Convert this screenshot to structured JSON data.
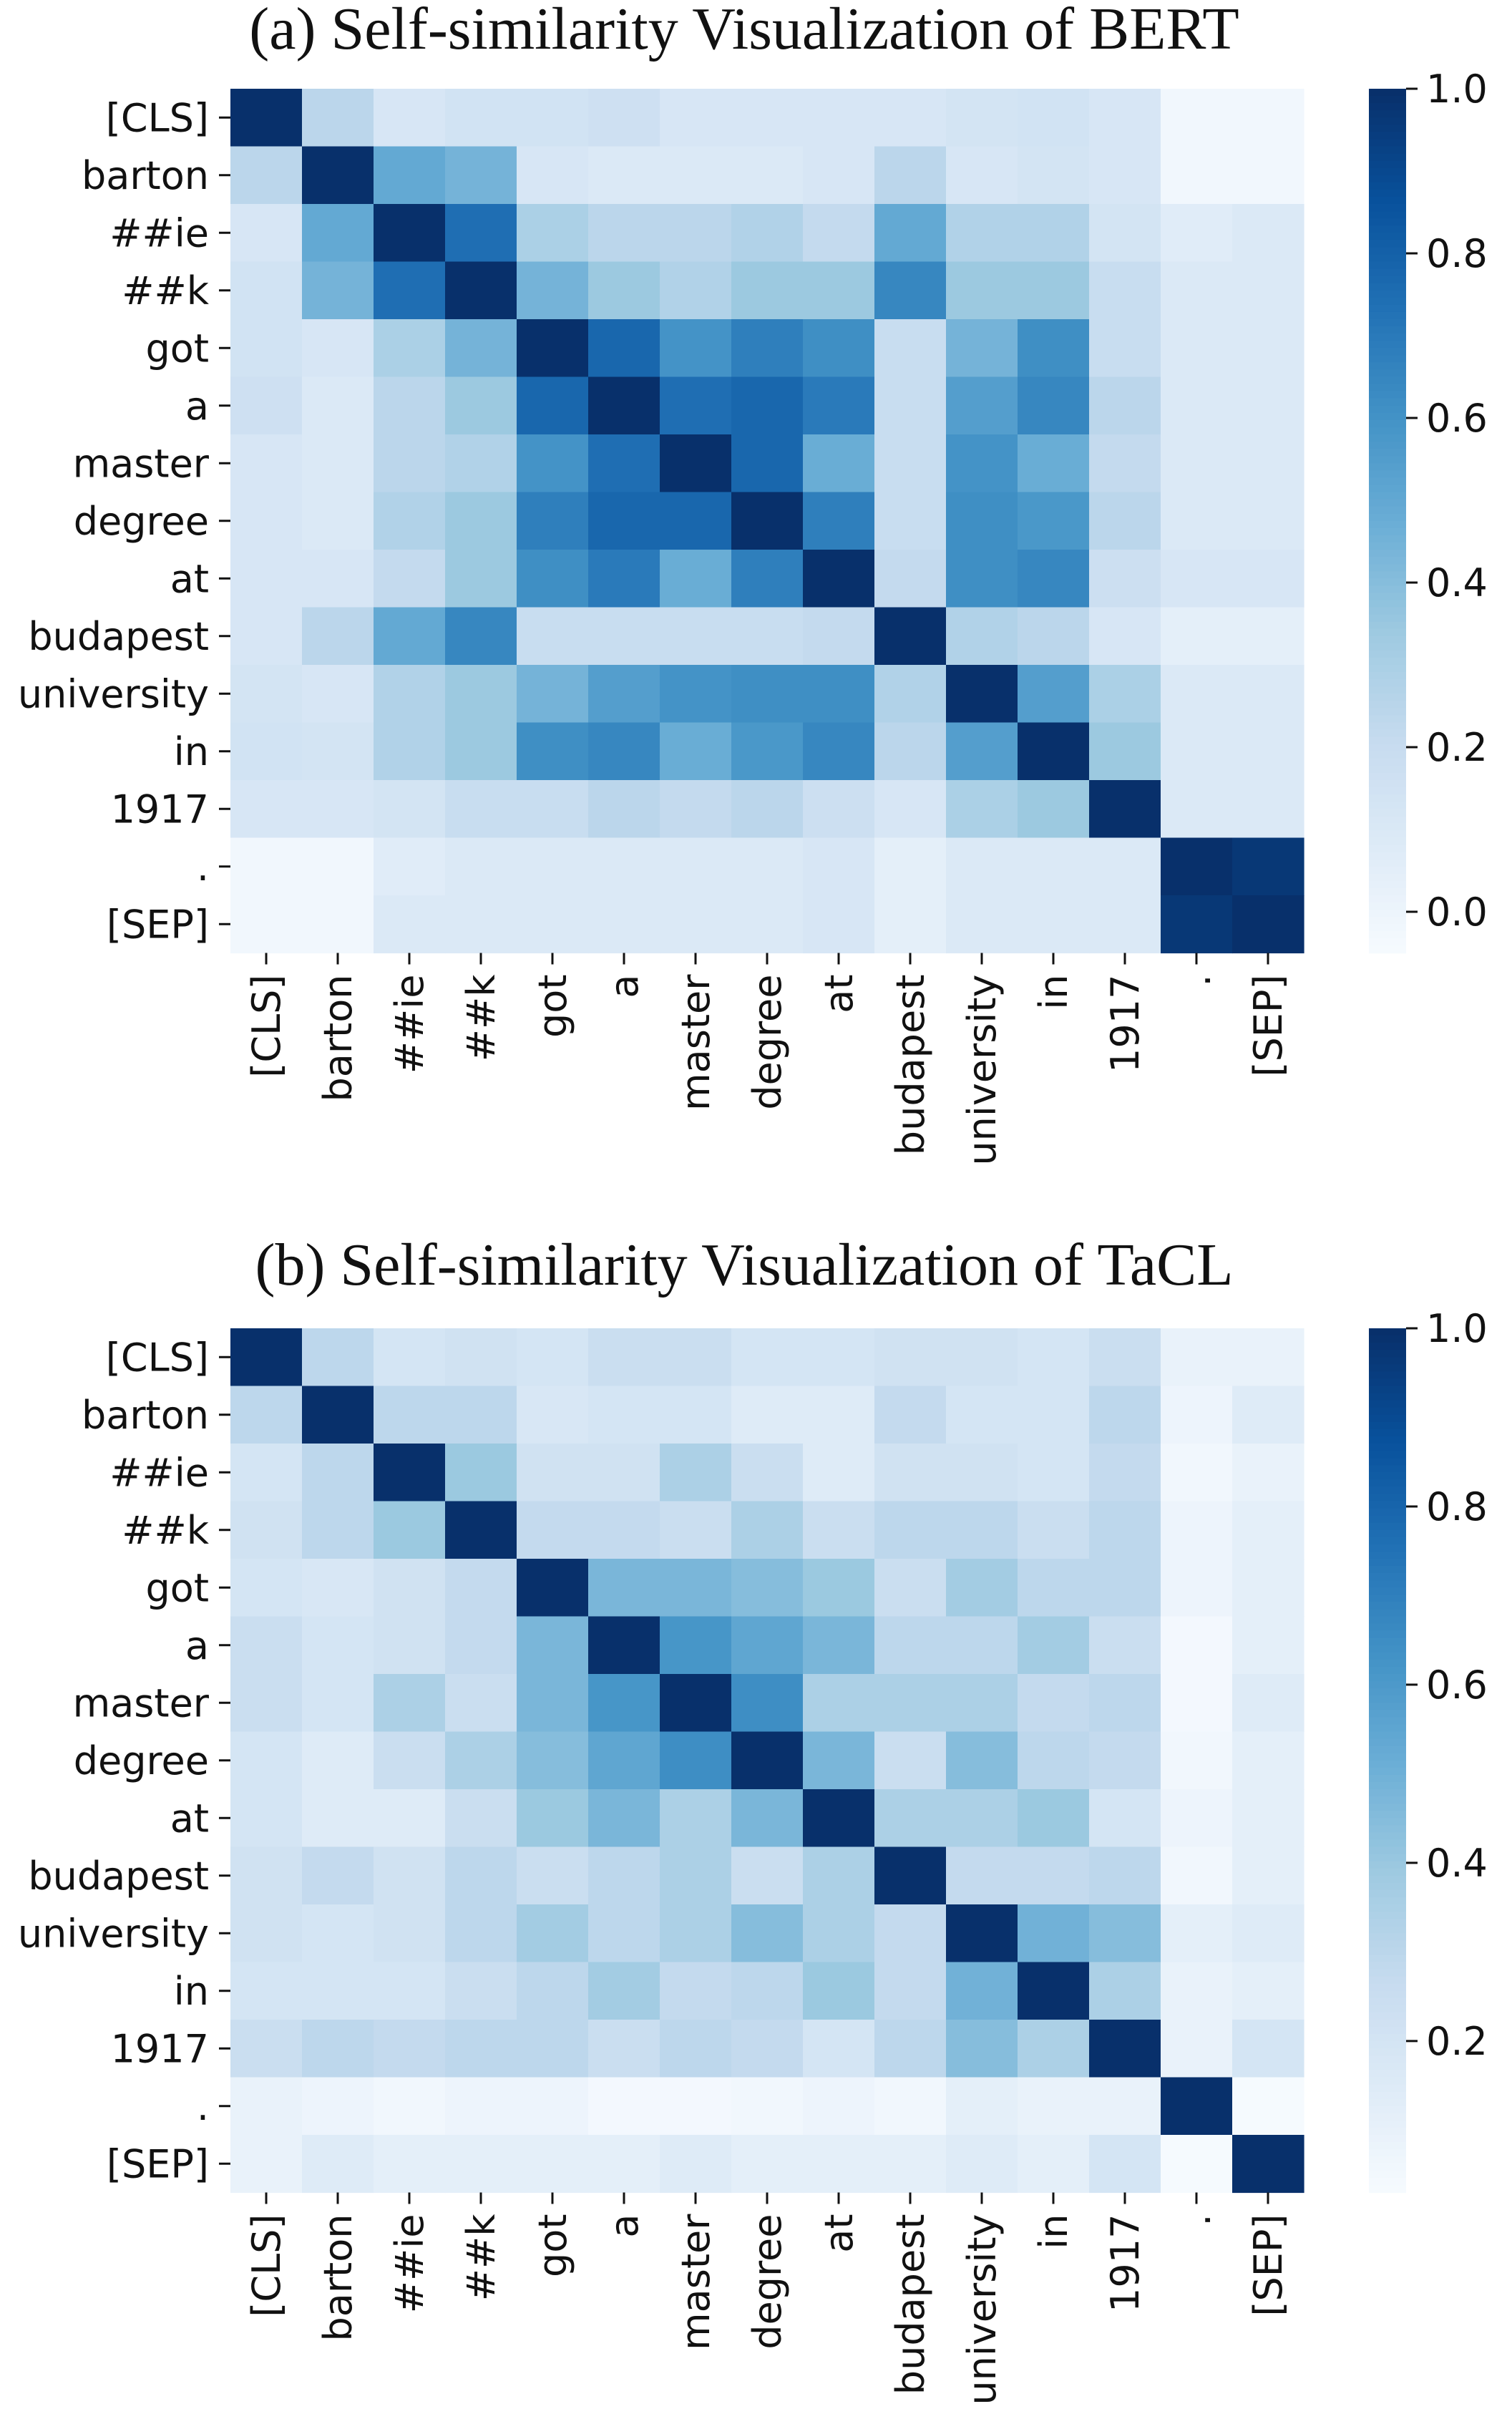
{
  "chart_data": [
    {
      "type": "heatmap",
      "title": "(a) Self-similarity Visualization of BERT",
      "x_labels": [
        "[CLS]",
        "barton",
        "##ie",
        "##k",
        "got",
        "a",
        "master",
        "degree",
        "at",
        "budapest",
        "university",
        "in",
        "1917",
        ".",
        "[SEP]"
      ],
      "y_labels": [
        "[CLS]",
        "barton",
        "##ie",
        "##k",
        "got",
        "a",
        "master",
        "degree",
        "at",
        "budapest",
        "university",
        "in",
        "1917",
        ".",
        "[SEP]"
      ],
      "values": [
        [
          1.0,
          0.25,
          0.12,
          0.15,
          0.15,
          0.17,
          0.12,
          0.12,
          0.12,
          0.12,
          0.14,
          0.15,
          0.12,
          -0.02,
          -0.02
        ],
        [
          0.25,
          1.0,
          0.5,
          0.45,
          0.12,
          0.1,
          0.1,
          0.1,
          0.12,
          0.25,
          0.12,
          0.14,
          0.12,
          -0.02,
          -0.02
        ],
        [
          0.12,
          0.5,
          1.0,
          0.75,
          0.3,
          0.25,
          0.25,
          0.28,
          0.22,
          0.5,
          0.28,
          0.28,
          0.14,
          0.07,
          0.1
        ],
        [
          0.15,
          0.45,
          0.75,
          1.0,
          0.45,
          0.35,
          0.28,
          0.35,
          0.35,
          0.65,
          0.35,
          0.35,
          0.2,
          0.1,
          0.1
        ],
        [
          0.15,
          0.12,
          0.3,
          0.45,
          1.0,
          0.78,
          0.6,
          0.68,
          0.62,
          0.2,
          0.45,
          0.62,
          0.2,
          0.1,
          0.1
        ],
        [
          0.17,
          0.1,
          0.25,
          0.35,
          0.78,
          1.0,
          0.75,
          0.78,
          0.7,
          0.2,
          0.55,
          0.65,
          0.25,
          0.1,
          0.1
        ],
        [
          0.12,
          0.1,
          0.25,
          0.28,
          0.6,
          0.75,
          1.0,
          0.78,
          0.48,
          0.2,
          0.6,
          0.48,
          0.22,
          0.1,
          0.1
        ],
        [
          0.12,
          0.1,
          0.28,
          0.35,
          0.68,
          0.78,
          0.78,
          1.0,
          0.68,
          0.2,
          0.62,
          0.58,
          0.25,
          0.1,
          0.1
        ],
        [
          0.12,
          0.12,
          0.22,
          0.35,
          0.62,
          0.7,
          0.48,
          0.68,
          1.0,
          0.22,
          0.62,
          0.65,
          0.18,
          0.12,
          0.12
        ],
        [
          0.12,
          0.25,
          0.5,
          0.65,
          0.2,
          0.2,
          0.2,
          0.2,
          0.22,
          1.0,
          0.28,
          0.25,
          0.12,
          0.05,
          0.05
        ],
        [
          0.14,
          0.12,
          0.28,
          0.35,
          0.45,
          0.55,
          0.6,
          0.62,
          0.62,
          0.28,
          1.0,
          0.55,
          0.3,
          0.1,
          0.1
        ],
        [
          0.15,
          0.14,
          0.28,
          0.35,
          0.62,
          0.65,
          0.48,
          0.58,
          0.65,
          0.25,
          0.55,
          1.0,
          0.35,
          0.1,
          0.1
        ],
        [
          0.12,
          0.12,
          0.14,
          0.2,
          0.2,
          0.25,
          0.22,
          0.25,
          0.18,
          0.12,
          0.3,
          0.35,
          1.0,
          0.1,
          0.1
        ],
        [
          -0.02,
          -0.02,
          0.07,
          0.1,
          0.1,
          0.1,
          0.1,
          0.1,
          0.12,
          0.05,
          0.1,
          0.1,
          0.1,
          1.0,
          0.97
        ],
        [
          -0.02,
          -0.02,
          0.1,
          0.1,
          0.1,
          0.1,
          0.1,
          0.1,
          0.12,
          0.05,
          0.1,
          0.1,
          0.1,
          0.97,
          1.0
        ]
      ],
      "colormap": "Blues",
      "vmin": -0.05,
      "vmax": 1.0,
      "colorbar_ticks": [
        "0.0",
        "0.2",
        "0.4",
        "0.6",
        "0.8",
        "1.0"
      ]
    },
    {
      "type": "heatmap",
      "title": "(b) Self-similarity Visualization of TaCL",
      "x_labels": [
        "[CLS]",
        "barton",
        "##ie",
        "##k",
        "got",
        "a",
        "master",
        "degree",
        "at",
        "budapest",
        "university",
        "in",
        "1917",
        ".",
        "[SEP]"
      ],
      "y_labels": [
        "[CLS]",
        "barton",
        "##ie",
        "##k",
        "got",
        "a",
        "master",
        "degree",
        "at",
        "budapest",
        "university",
        "in",
        "1917",
        ".",
        "[SEP]"
      ],
      "values": [
        [
          1.0,
          0.3,
          0.2,
          0.22,
          0.2,
          0.25,
          0.25,
          0.2,
          0.2,
          0.22,
          0.22,
          0.2,
          0.25,
          0.1,
          0.1
        ],
        [
          0.3,
          1.0,
          0.3,
          0.3,
          0.18,
          0.2,
          0.2,
          0.15,
          0.15,
          0.28,
          0.2,
          0.2,
          0.3,
          0.08,
          0.15
        ],
        [
          0.2,
          0.3,
          1.0,
          0.4,
          0.22,
          0.22,
          0.35,
          0.25,
          0.15,
          0.22,
          0.22,
          0.2,
          0.28,
          0.06,
          0.1
        ],
        [
          0.22,
          0.3,
          0.4,
          1.0,
          0.28,
          0.28,
          0.25,
          0.35,
          0.25,
          0.3,
          0.3,
          0.25,
          0.3,
          0.08,
          0.12
        ],
        [
          0.2,
          0.18,
          0.22,
          0.28,
          1.0,
          0.48,
          0.48,
          0.45,
          0.4,
          0.25,
          0.38,
          0.3,
          0.3,
          0.08,
          0.12
        ],
        [
          0.25,
          0.2,
          0.22,
          0.28,
          0.48,
          1.0,
          0.62,
          0.55,
          0.48,
          0.3,
          0.3,
          0.38,
          0.25,
          0.05,
          0.12
        ],
        [
          0.25,
          0.2,
          0.35,
          0.25,
          0.48,
          0.62,
          1.0,
          0.65,
          0.35,
          0.35,
          0.35,
          0.28,
          0.3,
          0.05,
          0.15
        ],
        [
          0.2,
          0.15,
          0.25,
          0.35,
          0.45,
          0.55,
          0.65,
          1.0,
          0.48,
          0.25,
          0.45,
          0.3,
          0.28,
          0.06,
          0.12
        ],
        [
          0.2,
          0.15,
          0.15,
          0.25,
          0.4,
          0.48,
          0.35,
          0.48,
          1.0,
          0.35,
          0.35,
          0.4,
          0.2,
          0.08,
          0.12
        ],
        [
          0.22,
          0.28,
          0.22,
          0.3,
          0.25,
          0.3,
          0.35,
          0.25,
          0.35,
          1.0,
          0.28,
          0.28,
          0.3,
          0.06,
          0.12
        ],
        [
          0.22,
          0.2,
          0.22,
          0.3,
          0.38,
          0.3,
          0.35,
          0.45,
          0.35,
          0.28,
          1.0,
          0.5,
          0.45,
          0.12,
          0.15
        ],
        [
          0.2,
          0.2,
          0.2,
          0.25,
          0.3,
          0.38,
          0.28,
          0.3,
          0.4,
          0.28,
          0.5,
          1.0,
          0.35,
          0.1,
          0.12
        ],
        [
          0.25,
          0.3,
          0.28,
          0.3,
          0.3,
          0.25,
          0.3,
          0.28,
          0.2,
          0.3,
          0.45,
          0.35,
          1.0,
          0.1,
          0.2
        ],
        [
          0.1,
          0.08,
          0.06,
          0.08,
          0.08,
          0.05,
          0.05,
          0.06,
          0.08,
          0.06,
          0.12,
          0.1,
          0.1,
          1.0,
          0.04
        ],
        [
          0.1,
          0.15,
          0.12,
          0.12,
          0.12,
          0.12,
          0.15,
          0.12,
          0.12,
          0.12,
          0.15,
          0.12,
          0.2,
          0.04,
          1.0
        ]
      ],
      "colormap": "Blues",
      "vmin": 0.03,
      "vmax": 1.0,
      "colorbar_ticks": [
        "0.2",
        "0.4",
        "0.6",
        "0.8",
        "1.0"
      ]
    }
  ]
}
